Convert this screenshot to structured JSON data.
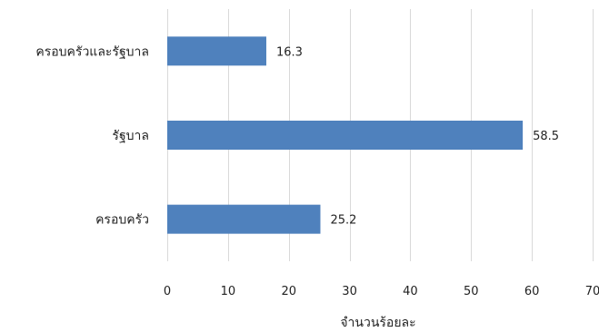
{
  "chart_data": {
    "type": "bar",
    "orientation": "horizontal",
    "categories": [
      "ครอบครัวและรัฐบาล",
      "รัฐบาล",
      "ครอบครัว"
    ],
    "values": [
      16.3,
      58.5,
      25.2
    ],
    "data_labels": [
      "16.3",
      "58.5",
      "25.2"
    ],
    "xlabel": "จำนวนร้อยละ",
    "ylabel": "",
    "xlim": [
      0,
      70
    ],
    "xticks": [
      0,
      10,
      20,
      30,
      40,
      50,
      60,
      70
    ],
    "grid": true,
    "legend": "none",
    "bar_color": "#4f81bd",
    "grid_color": "#d9d9d9"
  }
}
